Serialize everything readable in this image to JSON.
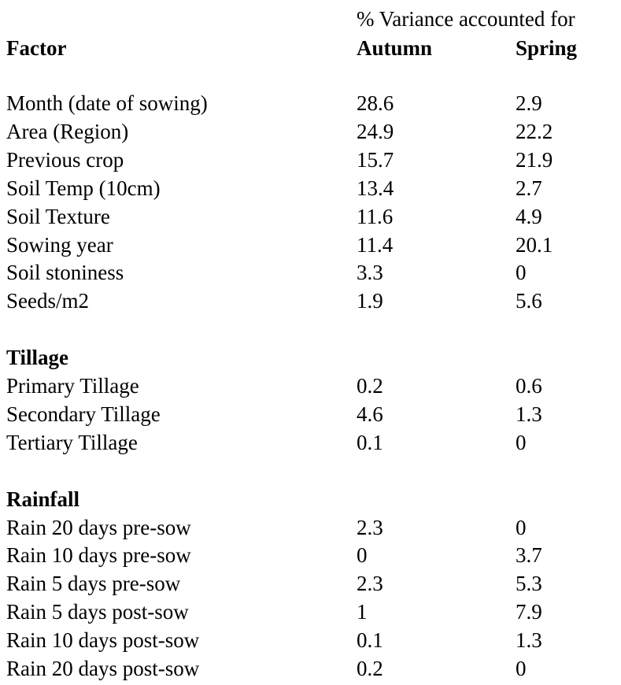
{
  "header": {
    "title": "% Variance accounted for",
    "columns": [
      "Factor",
      "Autumn",
      "Spring"
    ]
  },
  "sections": [
    {
      "rows": [
        [
          "Month (date of sowing)",
          28.6,
          2.9
        ],
        [
          "Area (Region)",
          24.9,
          22.2
        ],
        [
          "Previous crop",
          15.7,
          21.9
        ],
        [
          "Soil Temp (10cm)",
          13.4,
          2.7
        ],
        [
          "Soil Texture",
          11.6,
          4.9
        ],
        [
          "Sowing year",
          11.4,
          20.1
        ],
        [
          "Soil stoniness",
          3.3,
          0
        ],
        [
          "Seeds/m2",
          1.9,
          5.6
        ]
      ]
    },
    {
      "heading": "Tillage",
      "rows": [
        [
          "Primary Tillage",
          0.2,
          0.6
        ],
        [
          "Secondary Tillage",
          4.6,
          1.3
        ],
        [
          "Tertiary Tillage",
          0.1,
          0
        ]
      ]
    },
    {
      "heading": "Rainfall",
      "rows": [
        [
          "Rain 20 days pre-sow",
          2.3,
          0
        ],
        [
          "Rain 10 days pre-sow",
          0,
          3.7
        ],
        [
          "Rain 5 days pre-sow",
          2.3,
          5.3
        ],
        [
          "Rain 5 days post-sow",
          1,
          7.9
        ],
        [
          "Rain 10 days post-sow",
          0.1,
          1.3
        ],
        [
          "Rain 20 days post-sow",
          0.2,
          0
        ]
      ]
    }
  ]
}
